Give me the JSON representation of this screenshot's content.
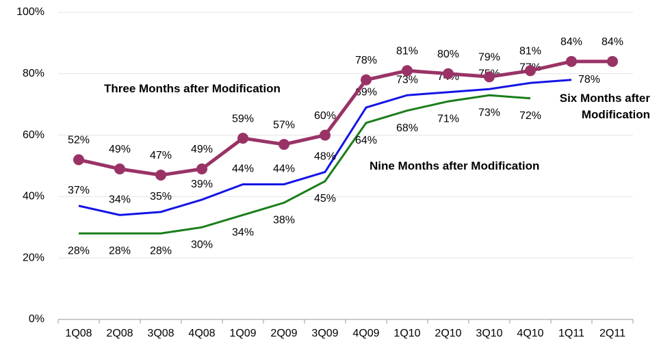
{
  "chart_data": {
    "type": "line",
    "categories": [
      "1Q08",
      "2Q08",
      "3Q08",
      "4Q08",
      "1Q09",
      "2Q09",
      "3Q09",
      "4Q09",
      "1Q10",
      "2Q10",
      "3Q10",
      "4Q10",
      "1Q11",
      "2Q11"
    ],
    "series": [
      {
        "name": "Three Months after Modification",
        "color": "#993366",
        "markers": true,
        "values": [
          52,
          49,
          47,
          49,
          59,
          57,
          60,
          78,
          81,
          80,
          79,
          81,
          84,
          84
        ],
        "value_labels": [
          "52%",
          "49%",
          "47%",
          "49%",
          "59%",
          "57%",
          "60%",
          "78%",
          "81%",
          "80%",
          "79%",
          "81%",
          "84%",
          "84%"
        ]
      },
      {
        "name": "Six Months after Modification",
        "color": "#1414e6",
        "markers": false,
        "values": [
          37,
          34,
          35,
          39,
          44,
          44,
          48,
          69,
          73,
          74,
          75,
          77,
          78,
          null
        ],
        "value_labels": [
          "37%",
          "34%",
          "35%",
          "39%",
          "44%",
          "44%",
          "48%",
          "69%",
          "73%",
          "74%",
          "75%",
          "77%",
          "78%",
          null
        ]
      },
      {
        "name": "Nine Months after Modification",
        "color": "#1a7d1a",
        "markers": false,
        "values": [
          28,
          28,
          28,
          30,
          34,
          38,
          45,
          64,
          68,
          71,
          73,
          72,
          null,
          null
        ],
        "value_labels": [
          "28%",
          "28%",
          "28%",
          "30%",
          "34%",
          "38%",
          "45%",
          "64%",
          "68%",
          "71%",
          "73%",
          "72%",
          null,
          null
        ]
      }
    ],
    "ylim": [
      0,
      100
    ],
    "yticks": [
      {
        "value": 0,
        "label": "0%"
      },
      {
        "value": 20,
        "label": "20%"
      },
      {
        "value": 40,
        "label": "40%"
      },
      {
        "value": 60,
        "label": "60%"
      },
      {
        "value": 80,
        "label": "80%"
      },
      {
        "value": 100,
        "label": "100%"
      }
    ],
    "grid": true
  }
}
